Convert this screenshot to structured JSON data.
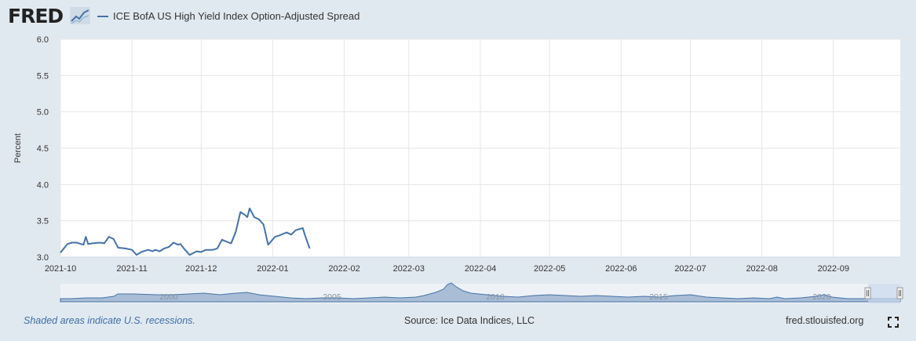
{
  "header": {
    "logo_text": "FRED",
    "logo_icon": "line-graph-icon",
    "legend_label": "ICE BofA US High Yield Index Option-Adjusted Spread",
    "legend_color": "#4572a7"
  },
  "footer": {
    "recession_note": "Shaded areas indicate U.S. recessions.",
    "source": "Source: Ice Data Indices, LLC",
    "site": "fred.stlouisfed.org",
    "fullscreen_icon": "fullscreen-icon"
  },
  "chart_data": {
    "type": "line",
    "title": "",
    "xlabel": "",
    "ylabel": "Percent",
    "ylim": [
      3.0,
      6.0
    ],
    "yticks": [
      3.0,
      3.5,
      4.0,
      4.5,
      5.0,
      5.5,
      6.0
    ],
    "ytick_labels": [
      "3.0",
      "3.5",
      "4.0",
      "4.5",
      "5.0",
      "5.5",
      "6.0"
    ],
    "xlim": [
      "2021-10-01",
      "2022-09-30"
    ],
    "xtick_labels": [
      "2021-10",
      "2021-11",
      "2021-12",
      "2022-01",
      "2022-02",
      "2022-03",
      "2022-04",
      "2022-05",
      "2022-06",
      "2022-07",
      "2022-08",
      "2022-09"
    ],
    "grid": true,
    "legend_position": "top-left",
    "series": [
      {
        "name": "ICE BofA US High Yield Index Option-Adjusted Spread",
        "color": "#4572a7",
        "points": [
          [
            "2021-10-01",
            3.06
          ],
          [
            "2021-10-04",
            3.18
          ],
          [
            "2021-10-06",
            3.2
          ],
          [
            "2021-10-08",
            3.2
          ],
          [
            "2021-10-11",
            3.17
          ],
          [
            "2021-10-12",
            3.28
          ],
          [
            "2021-10-13",
            3.18
          ],
          [
            "2021-10-15",
            3.19
          ],
          [
            "2021-10-18",
            3.2
          ],
          [
            "2021-10-20",
            3.19
          ],
          [
            "2021-10-22",
            3.28
          ],
          [
            "2021-10-24",
            3.25
          ],
          [
            "2021-10-26",
            3.13
          ],
          [
            "2021-10-29",
            3.12
          ],
          [
            "2021-11-01",
            3.1
          ],
          [
            "2021-11-03",
            3.03
          ],
          [
            "2021-11-05",
            3.07
          ],
          [
            "2021-11-08",
            3.1
          ],
          [
            "2021-11-10",
            3.08
          ],
          [
            "2021-11-11",
            3.1
          ],
          [
            "2021-11-13",
            3.08
          ],
          [
            "2021-11-15",
            3.12
          ],
          [
            "2021-11-17",
            3.14
          ],
          [
            "2021-11-19",
            3.2
          ],
          [
            "2021-11-21",
            3.17
          ],
          [
            "2021-11-22",
            3.18
          ],
          [
            "2021-11-24",
            3.1
          ],
          [
            "2021-11-26",
            3.03
          ],
          [
            "2021-11-29",
            3.08
          ],
          [
            "2021-12-01",
            3.07
          ],
          [
            "2021-12-03",
            3.1
          ],
          [
            "2021-12-06",
            3.1
          ],
          [
            "2021-12-08",
            3.12
          ],
          [
            "2021-12-10",
            3.24
          ],
          [
            "2021-12-13",
            3.2
          ],
          [
            "2021-12-14",
            3.19
          ],
          [
            "2021-12-16",
            3.35
          ],
          [
            "2021-12-18",
            3.62
          ],
          [
            "2021-12-20",
            3.58
          ],
          [
            "2021-12-21",
            3.55
          ],
          [
            "2021-12-22",
            3.67
          ],
          [
            "2021-12-24",
            3.55
          ],
          [
            "2021-12-26",
            3.52
          ],
          [
            "2021-12-28",
            3.45
          ],
          [
            "2021-12-30",
            3.17
          ],
          [
            "2022-01-02",
            3.28
          ],
          [
            "2022-01-04",
            3.3
          ],
          [
            "2022-01-07",
            3.34
          ],
          [
            "2022-01-09",
            3.31
          ],
          [
            "2022-01-11",
            3.37
          ],
          [
            "2022-01-14",
            3.4
          ],
          [
            "2022-01-15",
            3.3
          ],
          [
            "2022-01-17",
            3.12
          ]
        ]
      }
    ],
    "navigator": {
      "xtick_labels": [
        "2000",
        "2005",
        "2010",
        "2015",
        "2020"
      ]
    }
  }
}
